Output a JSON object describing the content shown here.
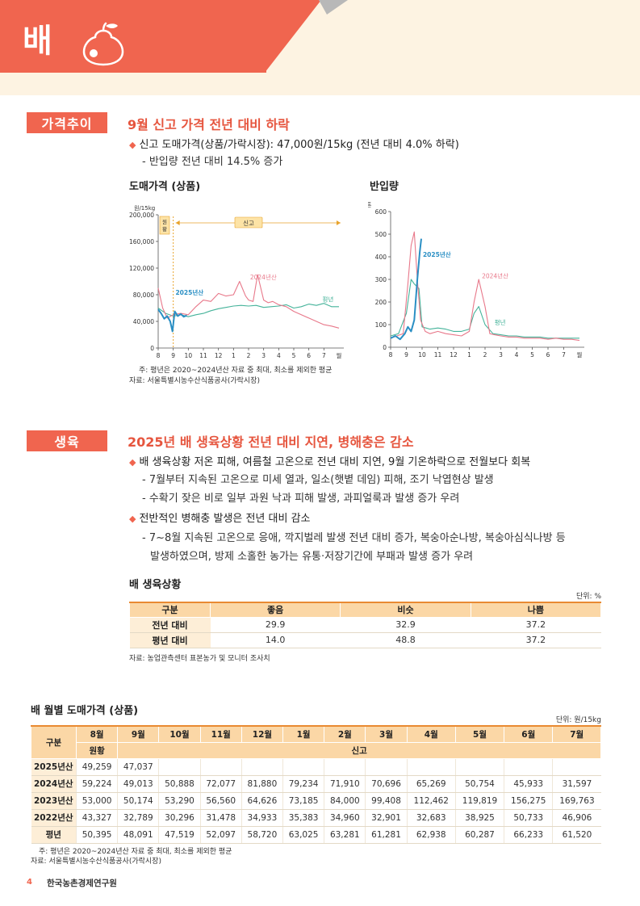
{
  "header": {
    "title": "배"
  },
  "price_section": {
    "tag": "가격추이",
    "title": "9월 신고 가격 전년 대비 하락",
    "bullet1": "신고 도매가격(상품/가락시장): 47,000원/15kg (전년 대비 4.0% 하락)",
    "sub1": "- 반입량 전년 대비 14.5% 증가",
    "chart1_title": "도매가격 (상품)",
    "chart2_title": "반입량",
    "note1": "주: 평년은 2020~2024년산 자료 중 최대, 최소를 제외한 평균",
    "note2": "자료: 서울특별시농수산식품공사(가락시장)"
  },
  "growth_section": {
    "tag": "생육",
    "title": "2025년 배 생육상황 전년 대비 지연, 병해충은 감소",
    "bullet1": "배 생육상황 저온 피해, 여름철 고온으로 전년 대비 지연, 9월 기온하락으로 전월보다 회복",
    "sub1": "- 7월부터 지속된 고온으로 미세 열과, 일소(햇볕 데임) 피해, 조기 낙엽현상 발생",
    "sub2": "- 수확기 잦은 비로 일부 과원 낙과 피해 발생, 과피얼룩과 발생 증가 우려",
    "bullet2": "전반적인 병해충 발생은 전년 대비 감소",
    "sub3": "- 7~8월 지속된 고온으로 응애, 깍지벌레 발생 전년 대비 증가, 복숭아순나방, 복숭아심식나방 등",
    "sub4": "발생하였으며, 방제 소홀한 농가는 유통·저장기간에 부패과 발생 증가 우려",
    "table_title": "배 생육상황",
    "table_unit": "단위: %",
    "table_headers": [
      "구분",
      "좋음",
      "비슷",
      "나쁨"
    ],
    "table_rows": [
      [
        "전년 대비",
        "29.9",
        "32.9",
        "37.2"
      ],
      [
        "평년 대비",
        "14.0",
        "48.8",
        "37.2"
      ]
    ],
    "table_note": "자료: 농업관측센터 표본농가 및 모니터 조사치"
  },
  "monthly_table": {
    "title": "배 월별 도매가격 (상품)",
    "unit": "단위: 원/15kg",
    "corner": "구분",
    "months": [
      "8월",
      "9월",
      "10월",
      "11월",
      "12월",
      "1월",
      "2월",
      "3월",
      "4월",
      "5월",
      "6월",
      "7월"
    ],
    "sub_wonhwang": "원황",
    "sub_singo": "신고",
    "rows": [
      [
        "2025년산",
        "49,259",
        "47,037",
        "",
        "",
        "",
        "",
        "",
        "",
        "",
        "",
        "",
        ""
      ],
      [
        "2024년산",
        "59,224",
        "49,013",
        "50,888",
        "72,077",
        "81,880",
        "79,234",
        "71,910",
        "70,696",
        "65,269",
        "50,754",
        "45,933",
        "31,597"
      ],
      [
        "2023년산",
        "53,000",
        "50,174",
        "53,290",
        "56,560",
        "64,626",
        "73,185",
        "84,000",
        "99,408",
        "112,462",
        "119,819",
        "156,275",
        "169,763"
      ],
      [
        "2022년산",
        "43,327",
        "32,789",
        "30,296",
        "31,478",
        "34,933",
        "35,383",
        "34,960",
        "32,901",
        "32,683",
        "38,925",
        "50,733",
        "46,906"
      ],
      [
        "평년",
        "50,395",
        "48,091",
        "47,519",
        "52,097",
        "58,720",
        "63,025",
        "63,281",
        "61,281",
        "62,938",
        "60,287",
        "66,233",
        "61,520"
      ]
    ],
    "note1": "주: 평년은 2020~2024년산 자료 중 최대, 최소를 제외한 평균",
    "note2": "자료: 서울특별시농수산식품공사(가락시장)"
  },
  "footer": {
    "page": "4",
    "org": "한국농촌경제연구원"
  },
  "chart_data": [
    {
      "type": "line",
      "title": "도매가격 (상품)",
      "ylabel": "원/15kg",
      "ylim": [
        0,
        200000
      ],
      "yticks": [
        "0",
        "40,000",
        "80,000",
        "120,000",
        "160,000",
        "200,000"
      ],
      "xticks": [
        "8",
        "9",
        "10",
        "11",
        "12",
        "1",
        "2",
        "3",
        "4",
        "5",
        "6",
        "7",
        "월"
      ],
      "annotations": {
        "wonhwang": "원황",
        "singo": "신고"
      },
      "series": [
        {
          "name": "2025년산",
          "color": "#2a8fc4",
          "x": [
            8.0,
            8.2,
            8.4,
            8.6,
            8.8,
            8.95,
            9.1,
            9.3,
            9.5,
            9.7,
            9.9
          ],
          "values": [
            58000,
            52000,
            44000,
            48000,
            40000,
            25000,
            55000,
            48000,
            51000,
            47000,
            49000
          ]
        },
        {
          "name": "2024년산",
          "color": "#e8788a",
          "x": [
            8.0,
            8.3,
            8.6,
            9.0,
            9.5,
            10.0,
            10.5,
            11.0,
            11.5,
            12.0,
            12.5,
            13.0,
            13.4,
            13.8,
            14.0,
            14.3,
            14.6,
            15.0,
            15.3,
            15.6,
            16.0,
            16.5,
            17.0,
            17.5,
            18.0,
            18.5,
            19.0,
            19.5,
            20.0
          ],
          "values": [
            90000,
            60000,
            45000,
            50000,
            52000,
            50000,
            62000,
            72000,
            70000,
            82000,
            78000,
            80000,
            100000,
            78000,
            72000,
            70000,
            110000,
            72000,
            68000,
            70000,
            65000,
            62000,
            55000,
            50000,
            45000,
            40000,
            35000,
            33000,
            30000
          ]
        },
        {
          "name": "평년",
          "color": "#45b39a",
          "x": [
            8.0,
            8.5,
            9.0,
            9.5,
            10.0,
            10.5,
            11.0,
            11.5,
            12.0,
            12.5,
            13.0,
            13.5,
            14.0,
            14.5,
            15.0,
            15.5,
            16.0,
            16.5,
            17.0,
            17.5,
            18.0,
            18.5,
            19.0,
            19.5,
            20.0
          ],
          "values": [
            60000,
            52000,
            48000,
            50000,
            47000,
            50000,
            52000,
            56000,
            59000,
            61000,
            63000,
            64000,
            63000,
            64000,
            61000,
            62000,
            63000,
            65000,
            60000,
            62000,
            66000,
            64000,
            67000,
            62000,
            62000
          ]
        }
      ]
    },
    {
      "type": "line",
      "title": "반입량",
      "ylabel": "톤",
      "ylim": [
        0,
        600
      ],
      "yticks": [
        "0",
        "100",
        "200",
        "300",
        "400",
        "500",
        "600"
      ],
      "xticks": [
        "8",
        "9",
        "10",
        "11",
        "12",
        "1",
        "2",
        "3",
        "4",
        "5",
        "6",
        "7",
        "월"
      ],
      "series": [
        {
          "name": "2025년산",
          "color": "#2a8fc4",
          "x": [
            8.0,
            8.3,
            8.6,
            8.9,
            9.1,
            9.3,
            9.5,
            9.7,
            9.85,
            9.95
          ],
          "values": [
            40,
            50,
            35,
            60,
            90,
            70,
            120,
            300,
            420,
            480
          ]
        },
        {
          "name": "2024년산",
          "color": "#e8788a",
          "x": [
            8.0,
            8.4,
            8.8,
            9.1,
            9.3,
            9.5,
            9.7,
            9.9,
            10.2,
            10.5,
            11.0,
            11.5,
            12.0,
            12.5,
            13.0,
            13.3,
            13.6,
            14.0,
            14.3,
            14.6,
            15.0,
            15.5,
            16.0,
            16.5,
            17.0,
            17.5,
            18.0,
            18.5,
            19.0,
            19.5,
            20.0
          ],
          "values": [
            40,
            50,
            60,
            280,
            450,
            510,
            300,
            120,
            70,
            60,
            70,
            60,
            55,
            50,
            70,
            200,
            300,
            180,
            60,
            55,
            50,
            45,
            45,
            40,
            40,
            40,
            35,
            40,
            35,
            35,
            30
          ]
        },
        {
          "name": "평년",
          "color": "#45b39a",
          "x": [
            8.0,
            8.5,
            9.0,
            9.3,
            9.5,
            9.8,
            10.0,
            10.5,
            11.0,
            11.5,
            12.0,
            12.5,
            13.0,
            13.3,
            13.6,
            14.0,
            14.5,
            15.0,
            15.5,
            16.0,
            16.5,
            17.0,
            17.5,
            18.0,
            18.5,
            19.0,
            19.5,
            20.0
          ],
          "values": [
            50,
            60,
            150,
            300,
            280,
            260,
            90,
            80,
            85,
            80,
            70,
            70,
            80,
            150,
            180,
            100,
            60,
            55,
            50,
            50,
            45,
            45,
            45,
            40,
            40,
            40,
            40,
            40
          ]
        }
      ]
    }
  ]
}
